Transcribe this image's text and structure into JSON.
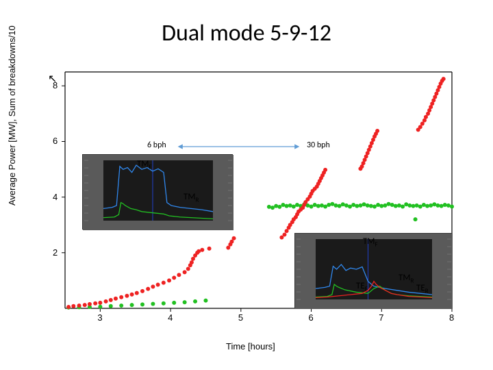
{
  "title": "Dual mode 5-9-12",
  "x_axis_label": "Time [hours]",
  "y_axis_label": "Average Power [MW], Sum of breakdowns/10",
  "plot": {
    "background": "#ffffff",
    "axis_color": "#000000",
    "xlim": [
      2.5,
      8
    ],
    "ylim": [
      0,
      8.5
    ],
    "x_ticks": [
      3,
      4,
      5,
      6,
      7,
      8
    ],
    "y_ticks": [
      2,
      4,
      6,
      8
    ]
  },
  "series_red": {
    "color": "#ee2222",
    "marker": "circle",
    "marker_size": 3,
    "points": [
      [
        2.55,
        0.05
      ],
      [
        2.62,
        0.08
      ],
      [
        2.7,
        0.1
      ],
      [
        2.78,
        0.12
      ],
      [
        2.85,
        0.15
      ],
      [
        2.93,
        0.18
      ],
      [
        3.0,
        0.2
      ],
      [
        3.08,
        0.25
      ],
      [
        3.15,
        0.3
      ],
      [
        3.22,
        0.35
      ],
      [
        3.3,
        0.4
      ],
      [
        3.38,
        0.45
      ],
      [
        3.45,
        0.5
      ],
      [
        3.52,
        0.55
      ],
      [
        3.6,
        0.62
      ],
      [
        3.68,
        0.7
      ],
      [
        3.75,
        0.78
      ],
      [
        3.82,
        0.85
      ],
      [
        3.9,
        0.92
      ],
      [
        3.98,
        1.0
      ],
      [
        4.05,
        1.1
      ],
      [
        4.12,
        1.2
      ],
      [
        4.2,
        1.3
      ],
      [
        4.25,
        1.42
      ],
      [
        4.28,
        1.55
      ],
      [
        4.3,
        1.65
      ],
      [
        4.32,
        1.78
      ],
      [
        4.35,
        1.9
      ],
      [
        4.38,
        2.0
      ],
      [
        4.4,
        2.05
      ],
      [
        4.45,
        2.1
      ],
      [
        4.55,
        2.15
      ],
      [
        4.82,
        2.18
      ],
      [
        4.85,
        2.3
      ],
      [
        4.87,
        2.4
      ],
      [
        4.9,
        2.52
      ],
      [
        5.58,
        2.55
      ],
      [
        5.62,
        2.65
      ],
      [
        5.65,
        2.78
      ],
      [
        5.68,
        2.9
      ],
      [
        5.7,
        3.0
      ],
      [
        5.73,
        3.1
      ],
      [
        5.75,
        3.2
      ],
      [
        5.78,
        3.28
      ],
      [
        5.8,
        3.38
      ],
      [
        5.82,
        3.48
      ],
      [
        5.85,
        3.55
      ],
      [
        5.88,
        3.62
      ],
      [
        5.9,
        3.72
      ],
      [
        5.92,
        3.82
      ],
      [
        5.95,
        3.92
      ],
      [
        5.98,
        4.02
      ],
      [
        6.0,
        4.12
      ],
      [
        6.02,
        4.22
      ],
      [
        6.05,
        4.3
      ],
      [
        6.08,
        4.38
      ],
      [
        6.1,
        4.48
      ],
      [
        6.12,
        4.58
      ],
      [
        6.14,
        4.68
      ],
      [
        6.16,
        4.78
      ],
      [
        6.18,
        4.88
      ],
      [
        6.2,
        4.98
      ],
      [
        6.7,
        5.02
      ],
      [
        6.72,
        5.1
      ],
      [
        6.74,
        5.22
      ],
      [
        6.76,
        5.34
      ],
      [
        6.78,
        5.46
      ],
      [
        6.8,
        5.58
      ],
      [
        6.82,
        5.7
      ],
      [
        6.84,
        5.82
      ],
      [
        6.86,
        5.94
      ],
      [
        6.88,
        6.06
      ],
      [
        6.9,
        6.18
      ],
      [
        6.92,
        6.28
      ],
      [
        6.94,
        6.38
      ],
      [
        7.52,
        6.42
      ],
      [
        7.55,
        6.52
      ],
      [
        7.58,
        6.64
      ],
      [
        7.61,
        6.76
      ],
      [
        7.63,
        6.88
      ],
      [
        7.66,
        7.0
      ],
      [
        7.68,
        7.12
      ],
      [
        7.7,
        7.24
      ],
      [
        7.72,
        7.36
      ],
      [
        7.74,
        7.48
      ],
      [
        7.76,
        7.6
      ],
      [
        7.78,
        7.72
      ],
      [
        7.8,
        7.84
      ],
      [
        7.82,
        7.96
      ],
      [
        7.84,
        8.08
      ],
      [
        7.86,
        8.18
      ],
      [
        7.88,
        8.25
      ]
    ]
  },
  "series_green": {
    "color": "#22c022",
    "marker": "circle",
    "marker_size": 3,
    "points": [
      [
        2.55,
        0.03
      ],
      [
        2.7,
        0.04
      ],
      [
        2.85,
        0.05
      ],
      [
        3.0,
        0.06
      ],
      [
        3.15,
        0.08
      ],
      [
        3.3,
        0.1
      ],
      [
        3.45,
        0.12
      ],
      [
        3.6,
        0.14
      ],
      [
        3.75,
        0.16
      ],
      [
        3.9,
        0.18
      ],
      [
        4.05,
        0.2
      ],
      [
        4.2,
        0.22
      ],
      [
        4.35,
        0.25
      ],
      [
        4.5,
        0.28
      ],
      [
        5.4,
        3.65
      ],
      [
        5.45,
        3.62
      ],
      [
        5.5,
        3.68
      ],
      [
        5.55,
        3.65
      ],
      [
        5.6,
        3.72
      ],
      [
        5.65,
        3.68
      ],
      [
        5.7,
        3.7
      ],
      [
        5.75,
        3.66
      ],
      [
        5.8,
        3.72
      ],
      [
        5.85,
        3.68
      ],
      [
        5.9,
        3.74
      ],
      [
        5.95,
        3.7
      ],
      [
        6.0,
        3.66
      ],
      [
        6.05,
        3.72
      ],
      [
        6.1,
        3.68
      ],
      [
        6.15,
        3.7
      ],
      [
        6.2,
        3.66
      ],
      [
        6.25,
        3.72
      ],
      [
        6.3,
        3.75
      ],
      [
        6.35,
        3.7
      ],
      [
        6.4,
        3.68
      ],
      [
        6.45,
        3.74
      ],
      [
        6.5,
        3.7
      ],
      [
        6.55,
        3.66
      ],
      [
        6.6,
        3.72
      ],
      [
        6.65,
        3.68
      ],
      [
        6.7,
        3.7
      ],
      [
        6.75,
        3.74
      ],
      [
        6.8,
        3.7
      ],
      [
        6.85,
        3.68
      ],
      [
        6.9,
        3.66
      ],
      [
        6.95,
        3.72
      ],
      [
        7.0,
        3.68
      ],
      [
        7.05,
        3.7
      ],
      [
        7.1,
        3.75
      ],
      [
        7.15,
        3.72
      ],
      [
        7.2,
        3.68
      ],
      [
        7.25,
        3.7
      ],
      [
        7.3,
        3.66
      ],
      [
        7.35,
        3.74
      ],
      [
        7.4,
        3.7
      ],
      [
        7.45,
        3.68
      ],
      [
        7.48,
        3.2
      ],
      [
        7.5,
        3.7
      ],
      [
        7.55,
        3.66
      ],
      [
        7.6,
        3.72
      ],
      [
        7.65,
        3.68
      ],
      [
        7.7,
        3.7
      ],
      [
        7.75,
        3.74
      ],
      [
        7.8,
        3.7
      ],
      [
        7.85,
        3.68
      ],
      [
        7.9,
        3.72
      ],
      [
        7.95,
        3.7
      ],
      [
        8.0,
        3.66
      ]
    ]
  },
  "annotations": {
    "bph_left": "6 bph",
    "bph_right": "30 bph",
    "tmf1": "TM",
    "tmf1_sub": "F",
    "tmr1": "TM",
    "tmr1_sub": "R",
    "tmf2": "TM",
    "tmf2_sub": "F",
    "tmr2": "TM",
    "tmr2_sub": "R",
    "tef": "TE",
    "tef_sub": "F",
    "ter": "TE",
    "ter_sub": "R"
  },
  "arrow_color": "#5f9bd5",
  "inset1": {
    "bg": "#5a5a5a",
    "trace_blue": "#3088ee",
    "trace_green": "#22c022",
    "blue_points": [
      [
        0,
        0.2
      ],
      [
        0.08,
        0.22
      ],
      [
        0.12,
        0.25
      ],
      [
        0.15,
        0.9
      ],
      [
        0.18,
        0.85
      ],
      [
        0.22,
        0.88
      ],
      [
        0.26,
        0.8
      ],
      [
        0.3,
        0.92
      ],
      [
        0.35,
        0.85
      ],
      [
        0.4,
        0.88
      ],
      [
        0.45,
        0.82
      ],
      [
        0.5,
        0.86
      ],
      [
        0.55,
        0.8
      ],
      [
        0.58,
        0.3
      ],
      [
        0.62,
        0.25
      ],
      [
        0.7,
        0.22
      ],
      [
        0.8,
        0.2
      ],
      [
        0.9,
        0.18
      ],
      [
        1.0,
        0.15
      ]
    ],
    "green_points": [
      [
        0,
        0.05
      ],
      [
        0.1,
        0.06
      ],
      [
        0.14,
        0.1
      ],
      [
        0.16,
        0.3
      ],
      [
        0.18,
        0.28
      ],
      [
        0.2,
        0.25
      ],
      [
        0.25,
        0.2
      ],
      [
        0.3,
        0.18
      ],
      [
        0.35,
        0.15
      ],
      [
        0.4,
        0.14
      ],
      [
        0.45,
        0.13
      ],
      [
        0.5,
        0.12
      ],
      [
        0.55,
        0.11
      ],
      [
        0.6,
        0.08
      ],
      [
        0.7,
        0.06
      ],
      [
        0.8,
        0.05
      ],
      [
        0.9,
        0.04
      ],
      [
        1.0,
        0.03
      ]
    ]
  },
  "inset2": {
    "bg": "#5a5a5a",
    "trace_blue": "#3088ee",
    "trace_green": "#22c022",
    "trace_red": "#ee2222",
    "blue_points": [
      [
        0,
        0.18
      ],
      [
        0.08,
        0.2
      ],
      [
        0.12,
        0.22
      ],
      [
        0.15,
        0.55
      ],
      [
        0.18,
        0.5
      ],
      [
        0.22,
        0.58
      ],
      [
        0.26,
        0.48
      ],
      [
        0.3,
        0.52
      ],
      [
        0.35,
        0.5
      ],
      [
        0.4,
        0.54
      ],
      [
        0.45,
        0.3
      ],
      [
        0.48,
        0.25
      ],
      [
        0.5,
        0.22
      ],
      [
        0.55,
        0.2
      ],
      [
        0.6,
        0.18
      ],
      [
        0.7,
        0.15
      ],
      [
        0.8,
        0.12
      ],
      [
        0.9,
        0.1
      ],
      [
        1.0,
        0.08
      ]
    ],
    "green_points": [
      [
        0,
        0.04
      ],
      [
        0.1,
        0.05
      ],
      [
        0.14,
        0.08
      ],
      [
        0.16,
        0.25
      ],
      [
        0.18,
        0.22
      ],
      [
        0.2,
        0.2
      ],
      [
        0.25,
        0.16
      ],
      [
        0.3,
        0.14
      ],
      [
        0.35,
        0.12
      ],
      [
        0.4,
        0.11
      ],
      [
        0.45,
        0.1
      ],
      [
        0.5,
        0.18
      ],
      [
        0.55,
        0.22
      ],
      [
        0.6,
        0.15
      ],
      [
        0.65,
        0.1
      ],
      [
        0.7,
        0.08
      ],
      [
        0.8,
        0.06
      ],
      [
        0.9,
        0.05
      ],
      [
        1.0,
        0.04
      ]
    ],
    "red_points": [
      [
        0,
        0.03
      ],
      [
        0.1,
        0.04
      ],
      [
        0.15,
        0.05
      ],
      [
        0.2,
        0.06
      ],
      [
        0.25,
        0.07
      ],
      [
        0.3,
        0.08
      ],
      [
        0.35,
        0.09
      ],
      [
        0.4,
        0.1
      ],
      [
        0.45,
        0.15
      ],
      [
        0.48,
        0.22
      ],
      [
        0.5,
        0.3
      ],
      [
        0.52,
        0.25
      ],
      [
        0.55,
        0.2
      ],
      [
        0.6,
        0.15
      ],
      [
        0.65,
        0.1
      ],
      [
        0.7,
        0.08
      ],
      [
        0.8,
        0.05
      ],
      [
        0.9,
        0.04
      ],
      [
        1.0,
        0.03
      ]
    ]
  }
}
